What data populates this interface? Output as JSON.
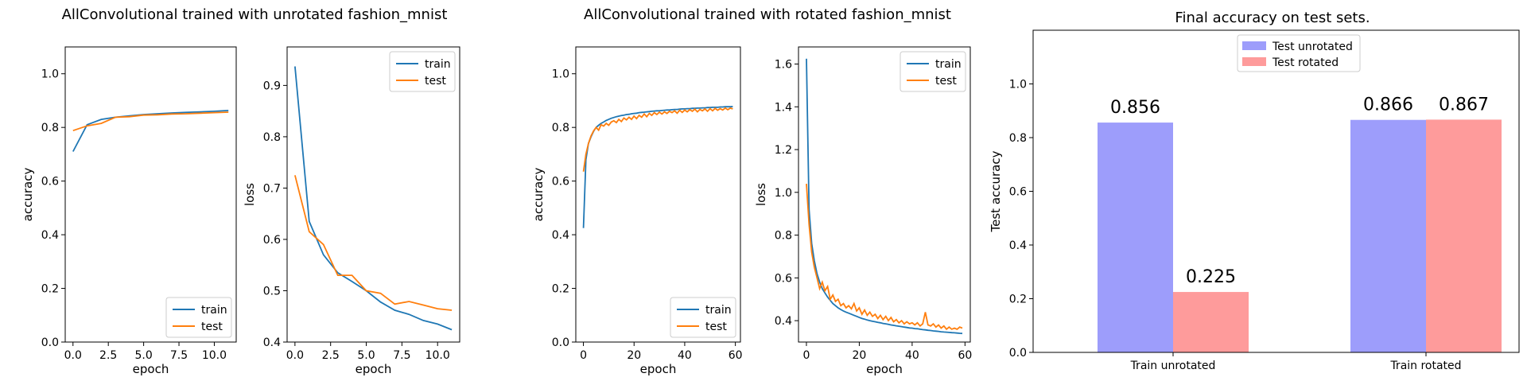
{
  "colors": {
    "train": "#1f77b4",
    "test": "#ff7f0e",
    "unrotated_bar": "#9d9dfb",
    "rotated_bar": "#fe9b9b"
  },
  "titles": {
    "unrotated": "AllConvolutional trained with unrotated fashion_mnist",
    "rotated": "AllConvolutional trained with rotated fashion_mnist",
    "final": "Final accuracy on test sets."
  },
  "chart_data": [
    {
      "type": "line",
      "xlabel": "epoch",
      "ylabel": "accuracy",
      "xlim": [
        -0.55,
        11.55
      ],
      "ylim": [
        0,
        1.1
      ],
      "xticks": [
        "0.0",
        "2.5",
        "5.0",
        "7.5",
        "10.0"
      ],
      "yticks": [
        "0.0",
        "0.2",
        "0.4",
        "0.6",
        "0.8",
        "1.0"
      ],
      "legend": "lower right",
      "series": [
        {
          "name": "train",
          "x": [
            0,
            1,
            2,
            3,
            4,
            5,
            6,
            7,
            8,
            9,
            10,
            11
          ],
          "values": [
            0.71,
            0.81,
            0.83,
            0.838,
            0.843,
            0.848,
            0.851,
            0.854,
            0.856,
            0.858,
            0.86,
            0.863
          ]
        },
        {
          "name": "test",
          "x": [
            0,
            1,
            2,
            3,
            4,
            5,
            6,
            7,
            8,
            9,
            10,
            11
          ],
          "values": [
            0.788,
            0.806,
            0.815,
            0.838,
            0.84,
            0.846,
            0.847,
            0.85,
            0.851,
            0.853,
            0.855,
            0.857
          ]
        }
      ]
    },
    {
      "type": "line",
      "xlabel": "epoch",
      "ylabel": "loss",
      "xlim": [
        -0.55,
        11.55
      ],
      "ylim": [
        0.4,
        0.975
      ],
      "xticks": [
        "0.0",
        "2.5",
        "5.0",
        "7.5",
        "10.0"
      ],
      "yticks": [
        "0.4",
        "0.5",
        "0.6",
        "0.7",
        "0.8",
        "0.9"
      ],
      "legend": "upper right",
      "series": [
        {
          "name": "train",
          "x": [
            0,
            1,
            2,
            3,
            4,
            5,
            6,
            7,
            8,
            9,
            10,
            11
          ],
          "values": [
            0.937,
            0.635,
            0.57,
            0.535,
            0.518,
            0.5,
            0.478,
            0.462,
            0.454,
            0.442,
            0.435,
            0.424
          ]
        },
        {
          "name": "test",
          "x": [
            0,
            1,
            2,
            3,
            4,
            5,
            6,
            7,
            8,
            9,
            10,
            11
          ],
          "values": [
            0.725,
            0.615,
            0.59,
            0.53,
            0.53,
            0.5,
            0.495,
            0.474,
            0.479,
            0.472,
            0.465,
            0.462
          ]
        }
      ]
    },
    {
      "type": "line",
      "xlabel": "epoch",
      "ylabel": "accuracy",
      "xlim": [
        -3,
        62
      ],
      "ylim": [
        0,
        1.1
      ],
      "xticks": [
        "0",
        "20",
        "40",
        "60"
      ],
      "yticks": [
        "0.0",
        "0.2",
        "0.4",
        "0.6",
        "0.8",
        "1.0"
      ],
      "legend": "lower right",
      "series": [
        {
          "name": "train",
          "x": [
            0,
            1,
            2,
            3,
            4,
            5,
            6,
            7,
            8,
            9,
            10,
            11,
            12,
            13,
            14,
            15,
            16,
            17,
            18,
            19,
            20,
            21,
            22,
            23,
            24,
            25,
            26,
            27,
            28,
            29,
            30,
            31,
            32,
            33,
            34,
            35,
            36,
            37,
            38,
            39,
            40,
            41,
            42,
            43,
            44,
            45,
            46,
            47,
            48,
            49,
            50,
            51,
            52,
            53,
            54,
            55,
            56,
            57,
            58,
            59
          ],
          "values": [
            0.425,
            0.68,
            0.74,
            0.765,
            0.785,
            0.8,
            0.808,
            0.815,
            0.82,
            0.826,
            0.83,
            0.834,
            0.837,
            0.84,
            0.842,
            0.844,
            0.846,
            0.848,
            0.849,
            0.851,
            0.852,
            0.853,
            0.855,
            0.856,
            0.857,
            0.858,
            0.859,
            0.86,
            0.861,
            0.862,
            0.862,
            0.863,
            0.864,
            0.865,
            0.865,
            0.866,
            0.867,
            0.867,
            0.868,
            0.869,
            0.869,
            0.87,
            0.87,
            0.871,
            0.871,
            0.872,
            0.872,
            0.873,
            0.873,
            0.874,
            0.874,
            0.875,
            0.875,
            0.875,
            0.876,
            0.876,
            0.877,
            0.877,
            0.877,
            0.878
          ]
        },
        {
          "name": "test",
          "x": [
            0,
            1,
            2,
            3,
            4,
            5,
            6,
            7,
            8,
            9,
            10,
            11,
            12,
            13,
            14,
            15,
            16,
            17,
            18,
            19,
            20,
            21,
            22,
            23,
            24,
            25,
            26,
            27,
            28,
            29,
            30,
            31,
            32,
            33,
            34,
            35,
            36,
            37,
            38,
            39,
            40,
            41,
            42,
            43,
            44,
            45,
            46,
            47,
            48,
            49,
            50,
            51,
            52,
            53,
            54,
            55,
            56,
            57,
            58,
            59
          ],
          "values": [
            0.635,
            0.7,
            0.74,
            0.768,
            0.787,
            0.8,
            0.79,
            0.81,
            0.805,
            0.815,
            0.808,
            0.82,
            0.825,
            0.818,
            0.83,
            0.822,
            0.835,
            0.828,
            0.838,
            0.83,
            0.842,
            0.833,
            0.845,
            0.838,
            0.85,
            0.84,
            0.852,
            0.845,
            0.855,
            0.848,
            0.857,
            0.85,
            0.858,
            0.852,
            0.86,
            0.855,
            0.862,
            0.853,
            0.864,
            0.856,
            0.865,
            0.858,
            0.866,
            0.86,
            0.868,
            0.858,
            0.867,
            0.862,
            0.869,
            0.86,
            0.87,
            0.862,
            0.871,
            0.864,
            0.87,
            0.865,
            0.872,
            0.866,
            0.872,
            0.869
          ]
        }
      ]
    },
    {
      "type": "line",
      "xlabel": "epoch",
      "ylabel": "loss",
      "xlim": [
        -3,
        62
      ],
      "ylim": [
        0.3,
        1.68
      ],
      "xticks": [
        "0",
        "20",
        "40",
        "60"
      ],
      "yticks": [
        "0.4",
        "0.6",
        "0.8",
        "1.0",
        "1.2",
        "1.4",
        "1.6"
      ],
      "legend": "upper right",
      "series": [
        {
          "name": "train",
          "x": [
            0,
            1,
            2,
            3,
            4,
            5,
            6,
            7,
            8,
            9,
            10,
            11,
            12,
            13,
            14,
            15,
            16,
            17,
            18,
            19,
            20,
            21,
            22,
            23,
            24,
            25,
            26,
            27,
            28,
            29,
            30,
            31,
            32,
            33,
            34,
            35,
            36,
            37,
            38,
            39,
            40,
            41,
            42,
            43,
            44,
            45,
            46,
            47,
            48,
            49,
            50,
            51,
            52,
            53,
            54,
            55,
            56,
            57,
            58,
            59
          ],
          "values": [
            1.625,
            0.92,
            0.76,
            0.68,
            0.62,
            0.58,
            0.55,
            0.53,
            0.51,
            0.495,
            0.48,
            0.47,
            0.46,
            0.452,
            0.445,
            0.44,
            0.435,
            0.43,
            0.425,
            0.42,
            0.415,
            0.41,
            0.407,
            0.403,
            0.4,
            0.397,
            0.395,
            0.392,
            0.39,
            0.387,
            0.385,
            0.383,
            0.38,
            0.378,
            0.376,
            0.374,
            0.372,
            0.37,
            0.368,
            0.366,
            0.365,
            0.363,
            0.362,
            0.36,
            0.358,
            0.357,
            0.355,
            0.354,
            0.352,
            0.351,
            0.35,
            0.348,
            0.347,
            0.346,
            0.345,
            0.344,
            0.343,
            0.342,
            0.341,
            0.34
          ]
        },
        {
          "name": "test",
          "x": [
            0,
            1,
            2,
            3,
            4,
            5,
            6,
            7,
            8,
            9,
            10,
            11,
            12,
            13,
            14,
            15,
            16,
            17,
            18,
            19,
            20,
            21,
            22,
            23,
            24,
            25,
            26,
            27,
            28,
            29,
            30,
            31,
            32,
            33,
            34,
            35,
            36,
            37,
            38,
            39,
            40,
            41,
            42,
            43,
            44,
            45,
            46,
            47,
            48,
            49,
            50,
            51,
            52,
            53,
            54,
            55,
            56,
            57,
            58,
            59
          ],
          "values": [
            1.04,
            0.85,
            0.72,
            0.65,
            0.6,
            0.55,
            0.58,
            0.54,
            0.56,
            0.5,
            0.52,
            0.49,
            0.5,
            0.47,
            0.48,
            0.46,
            0.47,
            0.455,
            0.48,
            0.445,
            0.46,
            0.43,
            0.45,
            0.425,
            0.44,
            0.42,
            0.43,
            0.41,
            0.425,
            0.405,
            0.42,
            0.4,
            0.415,
            0.395,
            0.405,
            0.39,
            0.4,
            0.385,
            0.395,
            0.385,
            0.39,
            0.38,
            0.39,
            0.375,
            0.385,
            0.44,
            0.38,
            0.375,
            0.385,
            0.37,
            0.38,
            0.365,
            0.375,
            0.36,
            0.37,
            0.36,
            0.365,
            0.36,
            0.37,
            0.365
          ]
        }
      ]
    },
    {
      "type": "bar",
      "xlabel": "",
      "ylabel": "Test accuracy",
      "title": "Final accuracy on test sets.",
      "categories": [
        "Train unrotated",
        "Train rotated"
      ],
      "ylim": [
        0,
        1.2
      ],
      "yticks": [
        "0.0",
        "0.2",
        "0.4",
        "0.6",
        "0.8",
        "1.0"
      ],
      "legend": "upper center",
      "series": [
        {
          "name": "Test unrotated",
          "values": [
            0.856,
            0.866
          ],
          "labels": [
            "0.856",
            "0.866"
          ]
        },
        {
          "name": "Test rotated",
          "values": [
            0.225,
            0.867
          ],
          "labels": [
            "0.225",
            "0.867"
          ]
        }
      ]
    }
  ]
}
